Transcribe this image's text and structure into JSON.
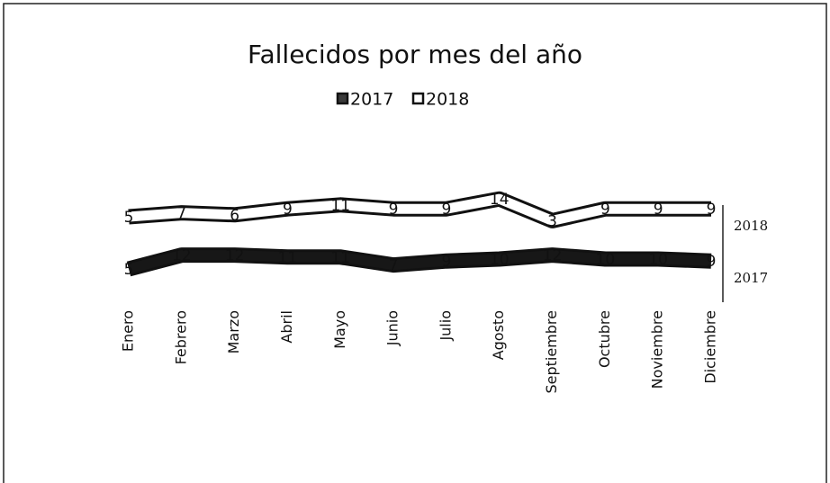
{
  "chart_data": {
    "type": "line",
    "title": "Fallecidos por mes del año",
    "categories": [
      "Enero",
      "Febrero",
      "Marzo",
      "Abril",
      "Mayo",
      "Junio",
      "Julio",
      "Agosto",
      "Septiembre",
      "Octubre",
      "Noviembre",
      "Diciembre"
    ],
    "series": [
      {
        "name": "2017",
        "color": "#3a3a3a",
        "values": [
          5,
          12,
          12,
          11,
          11,
          7,
          9,
          10,
          12,
          10,
          10,
          9
        ]
      },
      {
        "name": "2018",
        "color": "#ffffff",
        "values": [
          5,
          7,
          6,
          9,
          11,
          9,
          9,
          14,
          3,
          9,
          9,
          9
        ]
      }
    ]
  }
}
